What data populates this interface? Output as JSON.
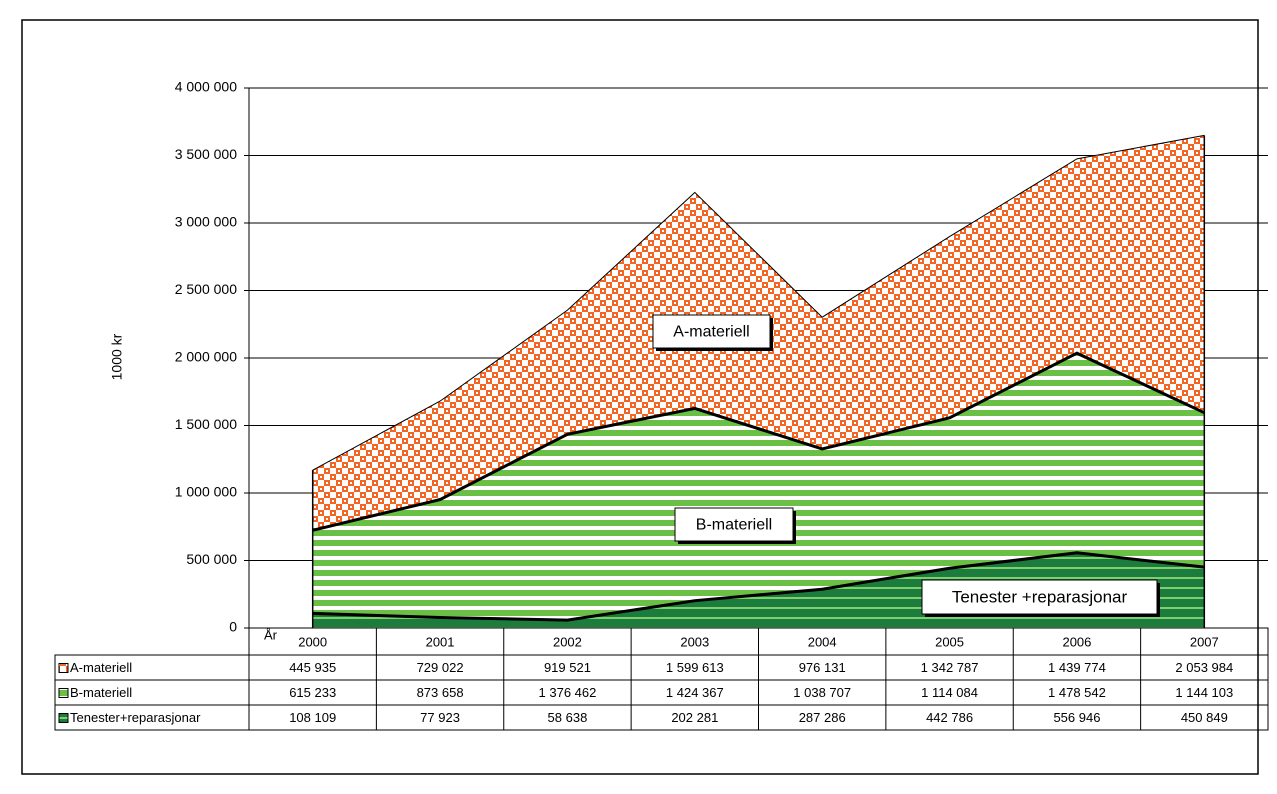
{
  "chart_data": {
    "type": "stacked_area",
    "y_label": "1000 kr",
    "x_label": "År",
    "categories": [
      "2000",
      "2001",
      "2002",
      "2003",
      "2004",
      "2005",
      "2006",
      "2007"
    ],
    "series": [
      {
        "name": "A-materiell",
        "color": "#f26522",
        "values": [
          445935,
          729022,
          919521,
          1599613,
          976131,
          1342787,
          1439774,
          2053984
        ],
        "value_labels": [
          "445 935",
          "729 022",
          "919 521",
          "1 599 613",
          "976 131",
          "1 342 787",
          "1 439 774",
          "2 053 984"
        ]
      },
      {
        "name": "B-materiell",
        "color": "#6abf45",
        "values": [
          615233,
          873658,
          1376462,
          1424367,
          1038707,
          1114084,
          1478542,
          1144103
        ],
        "value_labels": [
          "615 233",
          "873 658",
          "1 376 462",
          "1 424 367",
          "1 038 707",
          "1 114 084",
          "1 478 542",
          "1 144 103"
        ]
      },
      {
        "name": "Tenester+reparasjonar",
        "color": "#1b7c3d",
        "values": [
          108109,
          77923,
          58638,
          202281,
          287286,
          442786,
          556946,
          450849
        ],
        "value_labels": [
          "108 109",
          "77 923",
          "58 638",
          "202 281",
          "287 286",
          "442 786",
          "556 946",
          "450 849"
        ]
      }
    ],
    "annotations": [
      "A-materiell",
      "B-materiell",
      "Tenester +reparasjonar"
    ],
    "ylim": [
      0,
      4000000
    ],
    "yticks": [
      0,
      {
        "value": 500000,
        "label": "500 000"
      },
      {
        "value": 1000000,
        "label": "1 000 000"
      },
      {
        "value": 1500000,
        "label": "1 500 000"
      },
      {
        "value": 2000000,
        "label": "2 000 000"
      },
      {
        "value": 2500000,
        "label": "2 500 000"
      },
      {
        "value": 3000000,
        "label": "3 000 000"
      },
      {
        "value": 3500000,
        "label": "3 500 000"
      },
      {
        "value": 4000000,
        "label": "4 000 000"
      }
    ],
    "grid": true
  }
}
